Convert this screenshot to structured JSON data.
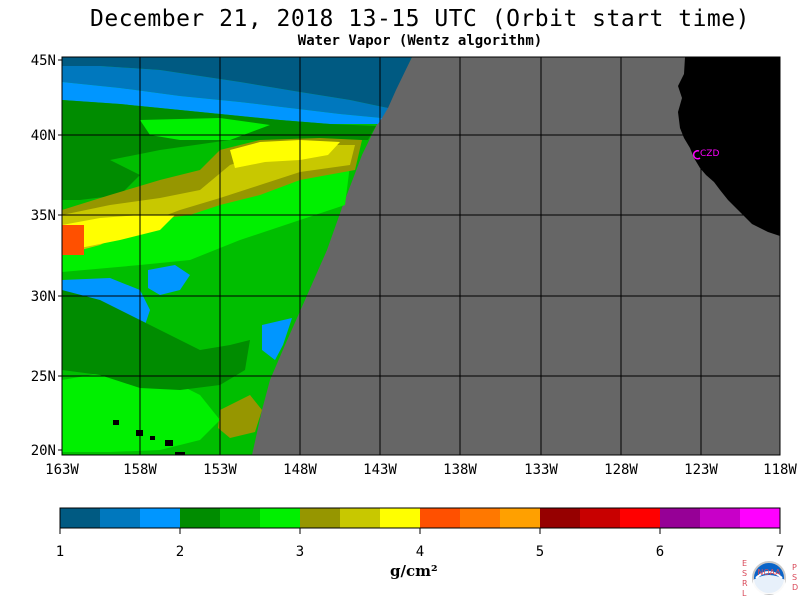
{
  "title": "December 21, 2018  13-15 UTC  (Orbit start time)",
  "subtitle": "Water Vapor (Wentz algorithm)",
  "map": {
    "lat_labels": [
      "45N",
      "40N",
      "35N",
      "30N",
      "25N",
      "20N"
    ],
    "lon_labels": [
      "163W",
      "158W",
      "153W",
      "148W",
      "143W",
      "138W",
      "133W",
      "128W",
      "123W",
      "118W"
    ],
    "station_label": "CZD",
    "colors": {
      "no_data": "#666666",
      "land": "#000000",
      "station": "#ff00ff",
      "grid": "#000000"
    }
  },
  "colorbar": {
    "ticks": [
      "1",
      "2",
      "3",
      "4",
      "5",
      "6",
      "7"
    ],
    "units": "g/cm²",
    "colors": [
      "#005a82",
      "#0078be",
      "#0096ff",
      "#008c00",
      "#00be00",
      "#00f000",
      "#969600",
      "#c8c800",
      "#ffff00",
      "#ff5000",
      "#ff7800",
      "#ffa000",
      "#960000",
      "#c80000",
      "#ff0000",
      "#960096",
      "#c800c8",
      "#ff00ff"
    ]
  },
  "logo": {
    "left_letters": [
      "E",
      "S",
      "R",
      "L"
    ],
    "right_letters": [
      "P",
      "S",
      "D"
    ],
    "center_text": "NOAA"
  }
}
